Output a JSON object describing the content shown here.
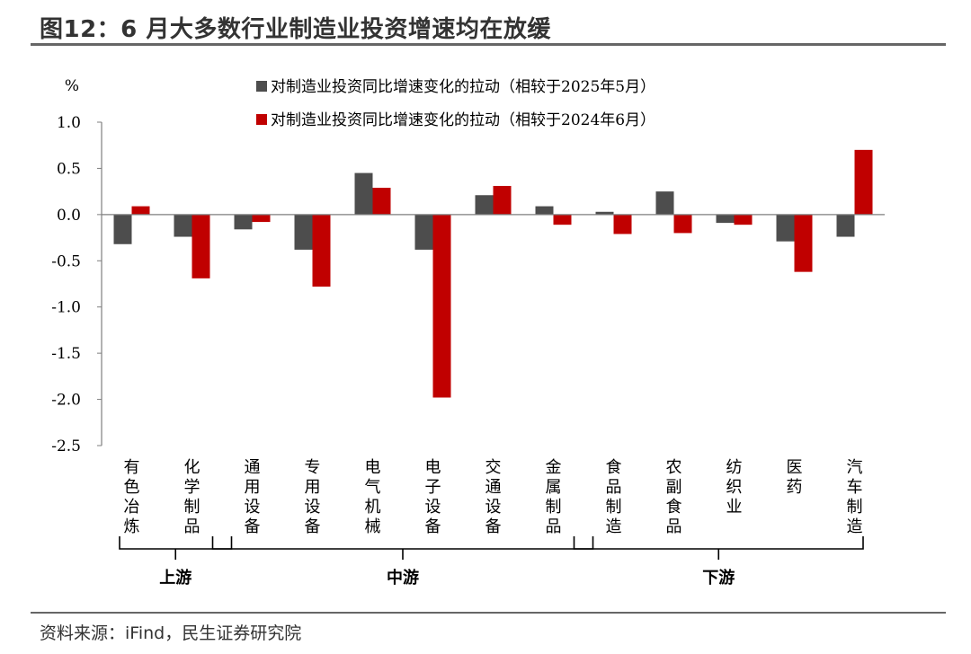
{
  "figure": {
    "title": "图12：6 月大多数行业制造业投资增速均在放缓",
    "source": "资料来源：iFind，民生证券研究院"
  },
  "colors": {
    "series_1": "#4d4d4d",
    "series_2": "#c00000",
    "axis": "#7f7f7f",
    "bracket": "#000000"
  },
  "chart_data": {
    "type": "bar",
    "ylabel": "%",
    "ylim": [
      -2.5,
      1.0
    ],
    "yticks": [
      1.0,
      0.5,
      0.0,
      -0.5,
      -1.0,
      -1.5,
      -2.0,
      -2.5
    ],
    "ytick_labels": [
      "1.0",
      "0.5",
      "0.0",
      "-0.5",
      "-1.0",
      "-1.5",
      "-2.0",
      "-2.5"
    ],
    "legend_position": "top",
    "grid": false,
    "categories": [
      "有色冶炼",
      "化学制品",
      "通用设备",
      "专用设备",
      "电气机械",
      "电子设备",
      "交通设备",
      "金属制品",
      "食品制造",
      "农副食品",
      "纺织业",
      "医药",
      "汽车制造"
    ],
    "series": [
      {
        "name": "对制造业投资同比增速变化的拉动（相较于2025年5月）",
        "values": [
          -0.32,
          -0.24,
          -0.16,
          -0.38,
          0.45,
          -0.38,
          0.21,
          0.09,
          0.03,
          0.25,
          -0.09,
          -0.29,
          -0.24
        ]
      },
      {
        "name": "对制造业投资同比增速变化的拉动（相较于2024年6月）",
        "values": [
          0.09,
          -0.69,
          -0.08,
          -0.78,
          0.29,
          -1.98,
          0.31,
          -0.11,
          -0.21,
          -0.2,
          -0.11,
          -0.62,
          0.7
        ]
      }
    ],
    "groups": [
      {
        "label": "上游",
        "from": 0,
        "to": 1
      },
      {
        "label": "中游",
        "from": 2,
        "to": 7
      },
      {
        "label": "下游",
        "from": 8,
        "to": 12
      }
    ]
  }
}
